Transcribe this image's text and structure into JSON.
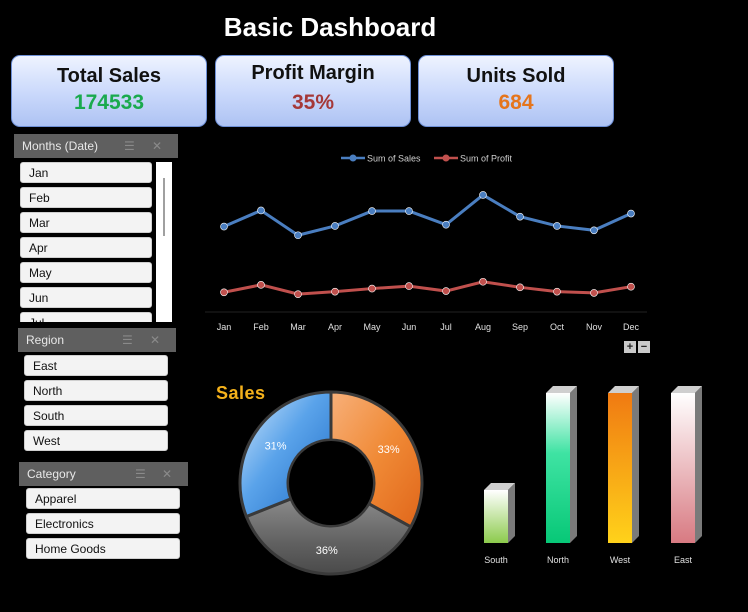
{
  "title": "Basic Dashboard",
  "kpis": [
    {
      "label": "Total Sales",
      "value": "174533",
      "color": "#1aaa4e"
    },
    {
      "label": "Profit Margin",
      "value": "35%",
      "color": "#a53838"
    },
    {
      "label": "Units Sold",
      "value": "684",
      "color": "#e5751c"
    }
  ],
  "slicers": {
    "months": {
      "header": "Months (Date)",
      "items": [
        "Jan",
        "Feb",
        "Mar",
        "Apr",
        "May",
        "Jun",
        "Jul"
      ]
    },
    "region": {
      "header": "Region",
      "items": [
        "East",
        "North",
        "South",
        "West"
      ]
    },
    "category": {
      "header": "Category",
      "items": [
        "Apparel",
        "Electronics",
        "Home Goods"
      ]
    }
  },
  "line_chart": {
    "legend": [
      "Sum of Sales",
      "Sum of Profit"
    ],
    "zoom_in": "+",
    "zoom_out": "−"
  },
  "donut_chart": {
    "title": "Sales",
    "labels": [
      "33%",
      "36%",
      "31%"
    ]
  },
  "bar_chart": {
    "categories": [
      "South",
      "North",
      "West",
      "East"
    ]
  },
  "chart_data": [
    {
      "type": "line",
      "x": [
        "Jan",
        "Feb",
        "Mar",
        "Apr",
        "May",
        "Jun",
        "Jul",
        "Aug",
        "Sep",
        "Oct",
        "Nov",
        "Dec"
      ],
      "series": [
        {
          "name": "Sum of Sales",
          "color": "#4a7ec0",
          "values": [
            16200,
            18800,
            14800,
            16300,
            18700,
            18700,
            16500,
            21300,
            17800,
            16300,
            15600,
            18300
          ]
        },
        {
          "name": "Sum of Profit",
          "color": "#c0504d",
          "values": [
            5600,
            6800,
            5300,
            5700,
            6200,
            6600,
            5800,
            7300,
            6400,
            5700,
            5500,
            6500
          ]
        }
      ],
      "legend_position": "top",
      "grid": false
    },
    {
      "type": "pie",
      "title": "Sales",
      "categories": [
        "Orange segment",
        "Gray segment",
        "Blue segment"
      ],
      "values": [
        33,
        36,
        31
      ],
      "colors": [
        "#f07a23",
        "#6b6b6b",
        "#2f7fd3"
      ],
      "donut": true
    },
    {
      "type": "bar",
      "categories": [
        "South",
        "North",
        "West",
        "East"
      ],
      "values": [
        53,
        150,
        150,
        150
      ],
      "colors": [
        "#9fd466",
        "#19d68a",
        "#f29a16",
        "#d9848a"
      ],
      "grid": false
    }
  ]
}
